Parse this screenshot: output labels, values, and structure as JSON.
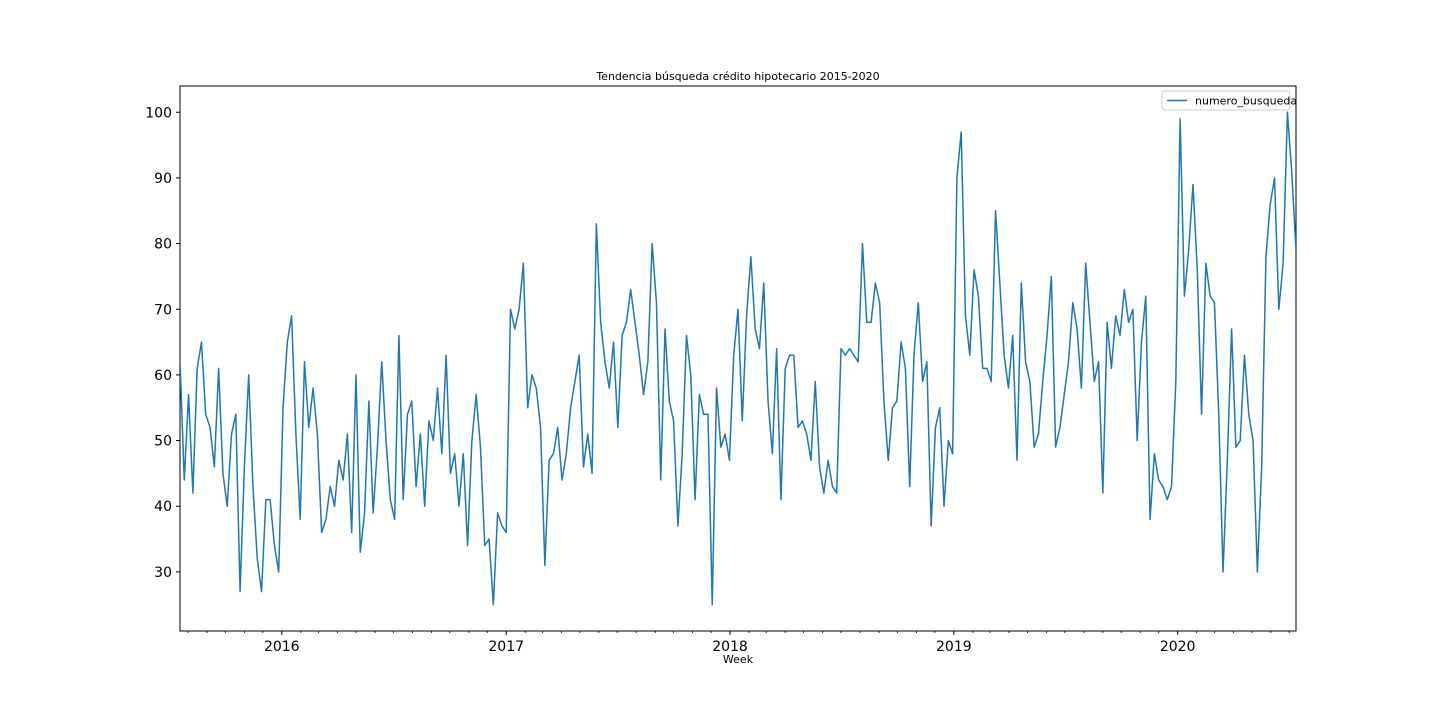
{
  "chart_data": {
    "type": "line",
    "title": "Tendencia búsqueda crédito hipotecario 2015-2020",
    "xlabel": "Week",
    "ylabel": "",
    "x_start": "2015-07-19",
    "x_end": "2020-07-12",
    "xlim": [
      "2015-07-19",
      "2020-07-12"
    ],
    "ylim": [
      21,
      104
    ],
    "x_ticks": [
      {
        "label": "2016",
        "date": "2016-01-01"
      },
      {
        "label": "2017",
        "date": "2017-01-01"
      },
      {
        "label": "2018",
        "date": "2018-01-01"
      },
      {
        "label": "2019",
        "date": "2019-01-01"
      },
      {
        "label": "2020",
        "date": "2020-01-01"
      }
    ],
    "y_ticks": [
      30,
      40,
      50,
      60,
      70,
      80,
      90,
      100
    ],
    "legend_position": "top-right",
    "grid": false,
    "series": [
      {
        "name": "numero_busqueda",
        "color": "#1f77b4",
        "values": [
          62,
          44,
          57,
          42,
          61,
          65,
          54,
          52,
          46,
          61,
          45,
          40,
          51,
          54,
          27,
          46,
          60,
          43,
          32,
          27,
          41,
          41,
          34,
          30,
          55,
          65,
          69,
          51,
          38,
          62,
          52,
          58,
          51,
          36,
          38,
          43,
          40,
          47,
          44,
          51,
          36,
          60,
          33,
          39,
          56,
          39,
          49,
          62,
          50,
          41,
          38,
          66,
          41,
          54,
          56,
          43,
          51,
          40,
          53,
          50,
          58,
          48,
          63,
          45,
          48,
          40,
          48,
          34,
          50,
          57,
          49,
          34,
          35,
          25,
          39,
          37,
          36,
          70,
          67,
          70,
          77,
          55,
          60,
          58,
          52,
          31,
          47,
          48,
          52,
          44,
          48,
          55,
          59,
          63,
          46,
          51,
          45,
          83,
          68,
          62,
          58,
          65,
          52,
          66,
          68,
          73,
          68,
          63,
          57,
          62,
          80,
          71,
          44,
          67,
          56,
          53,
          37,
          48,
          66,
          60,
          41,
          57,
          54,
          54,
          25,
          58,
          49,
          51,
          47,
          63,
          70,
          53,
          69,
          78,
          67,
          64,
          74,
          56,
          48,
          64,
          41,
          61,
          63,
          63,
          52,
          53,
          51,
          47,
          59,
          46,
          42,
          47,
          43,
          42,
          64,
          63,
          64,
          63,
          62,
          80,
          68,
          68,
          74,
          71,
          56,
          47,
          55,
          56,
          65,
          61,
          43,
          63,
          71,
          59,
          62,
          37,
          52,
          55,
          40,
          50,
          48,
          90,
          97,
          69,
          63,
          76,
          72,
          61,
          61,
          59,
          85,
          74,
          63,
          58,
          66,
          47,
          74,
          62,
          59,
          49,
          51,
          59,
          66,
          75,
          49,
          52,
          57,
          62,
          71,
          67,
          58,
          77,
          68,
          59,
          62,
          42,
          68,
          61,
          69,
          66,
          73,
          68,
          70,
          50,
          65,
          72,
          38,
          48,
          44,
          43,
          41,
          43,
          59,
          99,
          72,
          79,
          89,
          76,
          54,
          77,
          72,
          71,
          54,
          30,
          47,
          67,
          49,
          50,
          63,
          54,
          50,
          30,
          46,
          78,
          86,
          90,
          70,
          77,
          100,
          91,
          79
        ]
      }
    ]
  }
}
